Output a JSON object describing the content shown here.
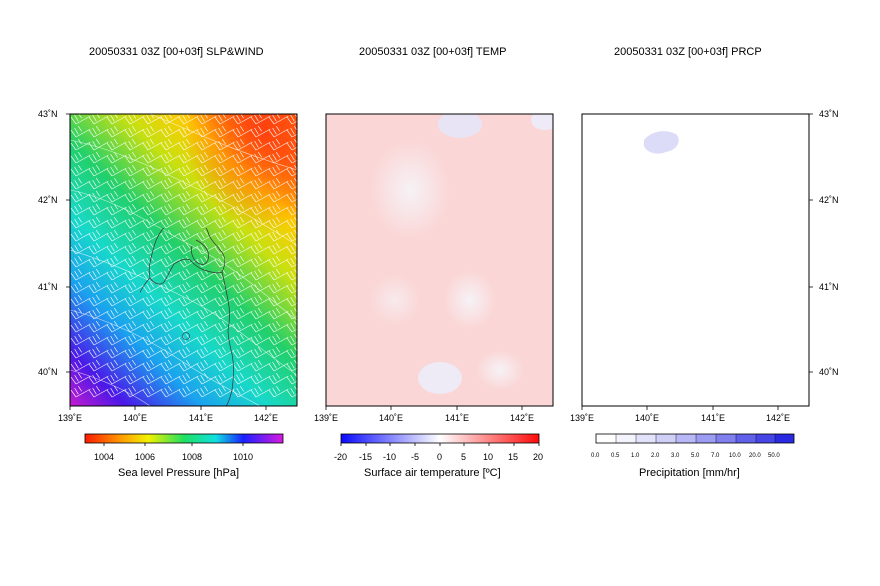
{
  "panels": [
    {
      "title": "20050331 03Z [00+03f] SLP&WIND",
      "colorbar_title": "Sea level Pressure [hPa]",
      "colorbar_ticks": [
        "1004",
        "1006",
        "1008",
        "1010"
      ]
    },
    {
      "title": "20050331 03Z [00+03f] TEMP",
      "colorbar_title": "Surface air temperature [ºC]",
      "colorbar_ticks": [
        "-20",
        "-15",
        "-10",
        "-5",
        "0",
        "5",
        "10",
        "15",
        "20"
      ]
    },
    {
      "title": "20050331 03Z [00+03f] PRCP",
      "colorbar_title": "Precipitation [mm/hr]",
      "colorbar_ticks": [
        "0.0",
        "0.5",
        "1.0",
        "2.0",
        "3.0",
        "5.0",
        "7.0",
        "10.0",
        "20.0",
        "50.0"
      ]
    }
  ],
  "lat_labels": [
    "43˚N",
    "42˚N",
    "41˚N",
    "40˚N"
  ],
  "lon_labels": [
    "139˚E",
    "140˚E",
    "141˚E",
    "142˚E"
  ]
}
